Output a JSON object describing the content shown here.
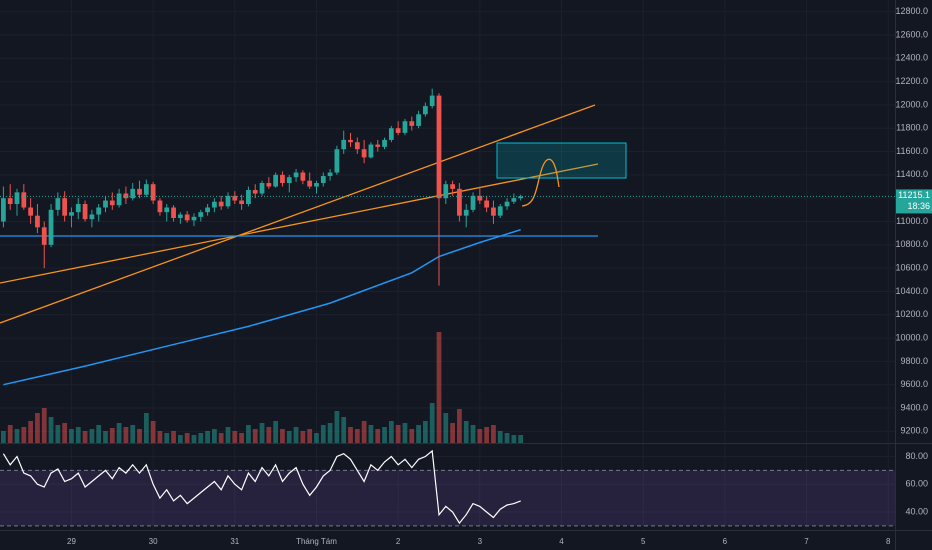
{
  "chart_data": {
    "type": "candlestick",
    "up_color": "#26a69a",
    "down_color": "#ef5350",
    "xlim": [
      -0.5,
      131
    ],
    "ylim": [
      9100,
      12900
    ],
    "xticks": [
      {
        "value": 10,
        "label": "29"
      },
      {
        "value": 22,
        "label": "30"
      },
      {
        "value": 34,
        "label": "31"
      },
      {
        "value": 46,
        "label": "Tháng Tám"
      },
      {
        "value": 58,
        "label": "2"
      },
      {
        "value": 70,
        "label": "3"
      },
      {
        "value": 82,
        "label": "4"
      },
      {
        "value": 94,
        "label": "5"
      },
      {
        "value": 106,
        "label": "6"
      },
      {
        "value": 118,
        "label": "7"
      },
      {
        "value": 130,
        "label": "8"
      }
    ],
    "yticks": [
      {
        "value": 9200,
        "label": "9200.0"
      },
      {
        "value": 9400,
        "label": "9400.0"
      },
      {
        "value": 9600,
        "label": "9600.0"
      },
      {
        "value": 9800,
        "label": "9800.0"
      },
      {
        "value": 10000,
        "label": "10000.0"
      },
      {
        "value": 10200,
        "label": "10200.0"
      },
      {
        "value": 10400,
        "label": "10400.0"
      },
      {
        "value": 10600,
        "label": "10600.0"
      },
      {
        "value": 10800,
        "label": "10800.0"
      },
      {
        "value": 11000,
        "label": "11000.0"
      },
      {
        "value": 11200,
        "label": "11200.0"
      },
      {
        "value": 11400,
        "label": "11400.0"
      },
      {
        "value": 11600,
        "label": "11600.0"
      },
      {
        "value": 11800,
        "label": "11800.0"
      },
      {
        "value": 12000,
        "label": "12000.0"
      },
      {
        "value": 12200,
        "label": "12200.0"
      },
      {
        "value": 12400,
        "label": "12400.0"
      },
      {
        "value": 12600,
        "label": "12600.0"
      },
      {
        "value": 12800,
        "label": "12800.0"
      }
    ],
    "grid": true,
    "candles": [
      [
        11000,
        11300,
        10950,
        11200
      ],
      [
        11200,
        11320,
        11100,
        11150
      ],
      [
        11150,
        11280,
        11050,
        11250
      ],
      [
        11250,
        11320,
        11100,
        11120
      ],
      [
        11120,
        11200,
        10980,
        11050
      ],
      [
        11050,
        11150,
        10900,
        10950
      ],
      [
        10950,
        11000,
        10600,
        10800
      ],
      [
        10800,
        11150,
        10780,
        11100
      ],
      [
        11100,
        11250,
        11050,
        11200
      ],
      [
        11200,
        11260,
        11000,
        11050
      ],
      [
        11050,
        11120,
        10950,
        11080
      ],
      [
        11080,
        11200,
        11020,
        11150
      ],
      [
        11150,
        11180,
        11000,
        11020
      ],
      [
        11020,
        11100,
        10950,
        11060
      ],
      [
        11060,
        11150,
        11000,
        11120
      ],
      [
        11120,
        11220,
        11080,
        11180
      ],
      [
        11180,
        11250,
        11100,
        11140
      ],
      [
        11140,
        11280,
        11120,
        11240
      ],
      [
        11240,
        11300,
        11150,
        11200
      ],
      [
        11200,
        11330,
        11180,
        11280
      ],
      [
        11280,
        11350,
        11200,
        11230
      ],
      [
        11230,
        11360,
        11210,
        11320
      ],
      [
        11320,
        11340,
        11150,
        11180
      ],
      [
        11180,
        11200,
        11050,
        11080
      ],
      [
        11080,
        11150,
        11000,
        11120
      ],
      [
        11120,
        11140,
        11000,
        11030
      ],
      [
        11030,
        11080,
        10980,
        11060
      ],
      [
        11060,
        11090,
        10990,
        11010
      ],
      [
        11010,
        11070,
        10960,
        11040
      ],
      [
        11040,
        11100,
        11000,
        11080
      ],
      [
        11080,
        11150,
        11050,
        11120
      ],
      [
        11120,
        11200,
        11080,
        11170
      ],
      [
        11170,
        11220,
        11100,
        11130
      ],
      [
        11130,
        11250,
        11110,
        11220
      ],
      [
        11220,
        11260,
        11150,
        11180
      ],
      [
        11180,
        11230,
        11100,
        11150
      ],
      [
        11150,
        11300,
        11130,
        11270
      ],
      [
        11270,
        11320,
        11200,
        11240
      ],
      [
        11240,
        11350,
        11220,
        11330
      ],
      [
        11330,
        11380,
        11280,
        11300
      ],
      [
        11300,
        11420,
        11290,
        11400
      ],
      [
        11400,
        11430,
        11300,
        11330
      ],
      [
        11330,
        11400,
        11250,
        11380
      ],
      [
        11380,
        11450,
        11340,
        11420
      ],
      [
        11420,
        11440,
        11320,
        11350
      ],
      [
        11350,
        11420,
        11280,
        11300
      ],
      [
        11300,
        11350,
        11240,
        11330
      ],
      [
        11330,
        11420,
        11300,
        11390
      ],
      [
        11390,
        11450,
        11350,
        11420
      ],
      [
        11420,
        11650,
        11400,
        11620
      ],
      [
        11620,
        11780,
        11580,
        11700
      ],
      [
        11700,
        11760,
        11640,
        11680
      ],
      [
        11680,
        11720,
        11580,
        11620
      ],
      [
        11620,
        11700,
        11500,
        11550
      ],
      [
        11550,
        11680,
        11540,
        11660
      ],
      [
        11660,
        11700,
        11600,
        11640
      ],
      [
        11640,
        11720,
        11620,
        11700
      ],
      [
        11700,
        11820,
        11680,
        11800
      ],
      [
        11800,
        11860,
        11740,
        11760
      ],
      [
        11760,
        11880,
        11740,
        11860
      ],
      [
        11860,
        11900,
        11780,
        11820
      ],
      [
        11820,
        11950,
        11800,
        11920
      ],
      [
        11920,
        12020,
        11900,
        11990
      ],
      [
        11990,
        12140,
        11970,
        12080
      ],
      [
        12080,
        12100,
        10450,
        11200
      ],
      [
        11200,
        11350,
        11150,
        11320
      ],
      [
        11320,
        11350,
        11220,
        11280
      ],
      [
        11280,
        11330,
        11000,
        11050
      ],
      [
        11050,
        11150,
        10950,
        11100
      ],
      [
        11100,
        11250,
        11080,
        11220
      ],
      [
        11220,
        11300,
        11150,
        11180
      ],
      [
        11180,
        11220,
        11080,
        11120
      ],
      [
        11120,
        11180,
        10980,
        11050
      ],
      [
        11050,
        11150,
        11030,
        11130
      ],
      [
        11130,
        11200,
        11100,
        11170
      ],
      [
        11170,
        11240,
        11150,
        11200
      ],
      [
        11200,
        11230,
        11180,
        11215.1
      ]
    ],
    "volume": {
      "vlim": [
        0,
        123
      ],
      "values": [
        12,
        18,
        14,
        16,
        22,
        30,
        35,
        26,
        18,
        20,
        14,
        16,
        12,
        14,
        18,
        12,
        15,
        20,
        16,
        18,
        14,
        30,
        22,
        12,
        10,
        12,
        8,
        10,
        8,
        10,
        12,
        14,
        10,
        16,
        12,
        10,
        18,
        14,
        20,
        16,
        22,
        14,
        12,
        16,
        12,
        14,
        10,
        18,
        20,
        32,
        26,
        16,
        14,
        22,
        18,
        14,
        16,
        22,
        18,
        20,
        14,
        18,
        22,
        40,
        111,
        30,
        20,
        34,
        22,
        18,
        14,
        16,
        18,
        12,
        10,
        8,
        8
      ]
    },
    "ma_x": [
      0,
      12,
      24,
      36,
      48,
      60,
      64,
      70,
      76
    ],
    "ma_values": [
      9600,
      9760,
      9930,
      10100,
      10300,
      10560,
      10700,
      10820,
      10930
    ],
    "countdown": "18:36",
    "rsi": {
      "ylim": [
        27,
        89
      ],
      "bands": [
        30,
        70
      ],
      "yticks": [
        {
          "value": 40,
          "label": "40.00"
        },
        {
          "value": 60,
          "label": "60.00"
        },
        {
          "value": 80,
          "label": "80.00"
        }
      ],
      "values": [
        82,
        74,
        80,
        68,
        66,
        60,
        58,
        68,
        71,
        62,
        64,
        68,
        58,
        62,
        66,
        70,
        64,
        72,
        68,
        74,
        68,
        74,
        60,
        50,
        56,
        48,
        52,
        46,
        50,
        54,
        58,
        62,
        56,
        66,
        60,
        56,
        68,
        62,
        72,
        66,
        74,
        62,
        68,
        72,
        60,
        52,
        58,
        66,
        70,
        80,
        82,
        78,
        70,
        62,
        74,
        70,
        76,
        80,
        74,
        78,
        72,
        78,
        80,
        84,
        38,
        44,
        40,
        32,
        38,
        46,
        44,
        40,
        36,
        42,
        45,
        46,
        48
      ]
    }
  }
}
